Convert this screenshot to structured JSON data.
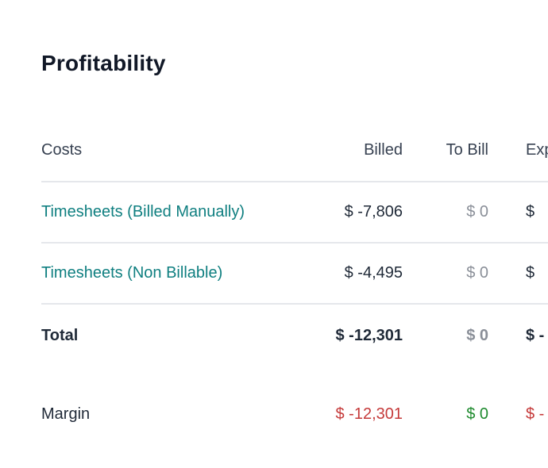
{
  "title": "Profitability",
  "table": {
    "headers": {
      "name": "Costs",
      "billed": "Billed",
      "to_bill": "To Bill",
      "exp": "Exp"
    },
    "rows": [
      {
        "name": "Timesheets (Billed Manually)",
        "billed": "$ -7,806",
        "to_bill": "$ 0",
        "exp": "$"
      },
      {
        "name": "Timesheets (Non Billable)",
        "billed": "$ -4,495",
        "to_bill": "$ 0",
        "exp": "$"
      }
    ],
    "total": {
      "name": "Total",
      "billed": "$ -12,301",
      "to_bill": "$ 0",
      "exp": "$ -"
    },
    "margin": {
      "name": "Margin",
      "billed": "$ -12,301",
      "to_bill": "$ 0",
      "exp": "$ -"
    }
  },
  "colors": {
    "link": "#0f7f80",
    "negative": "#c53a3a",
    "positive": "#1e8a2e",
    "muted": "#8a8f98"
  }
}
